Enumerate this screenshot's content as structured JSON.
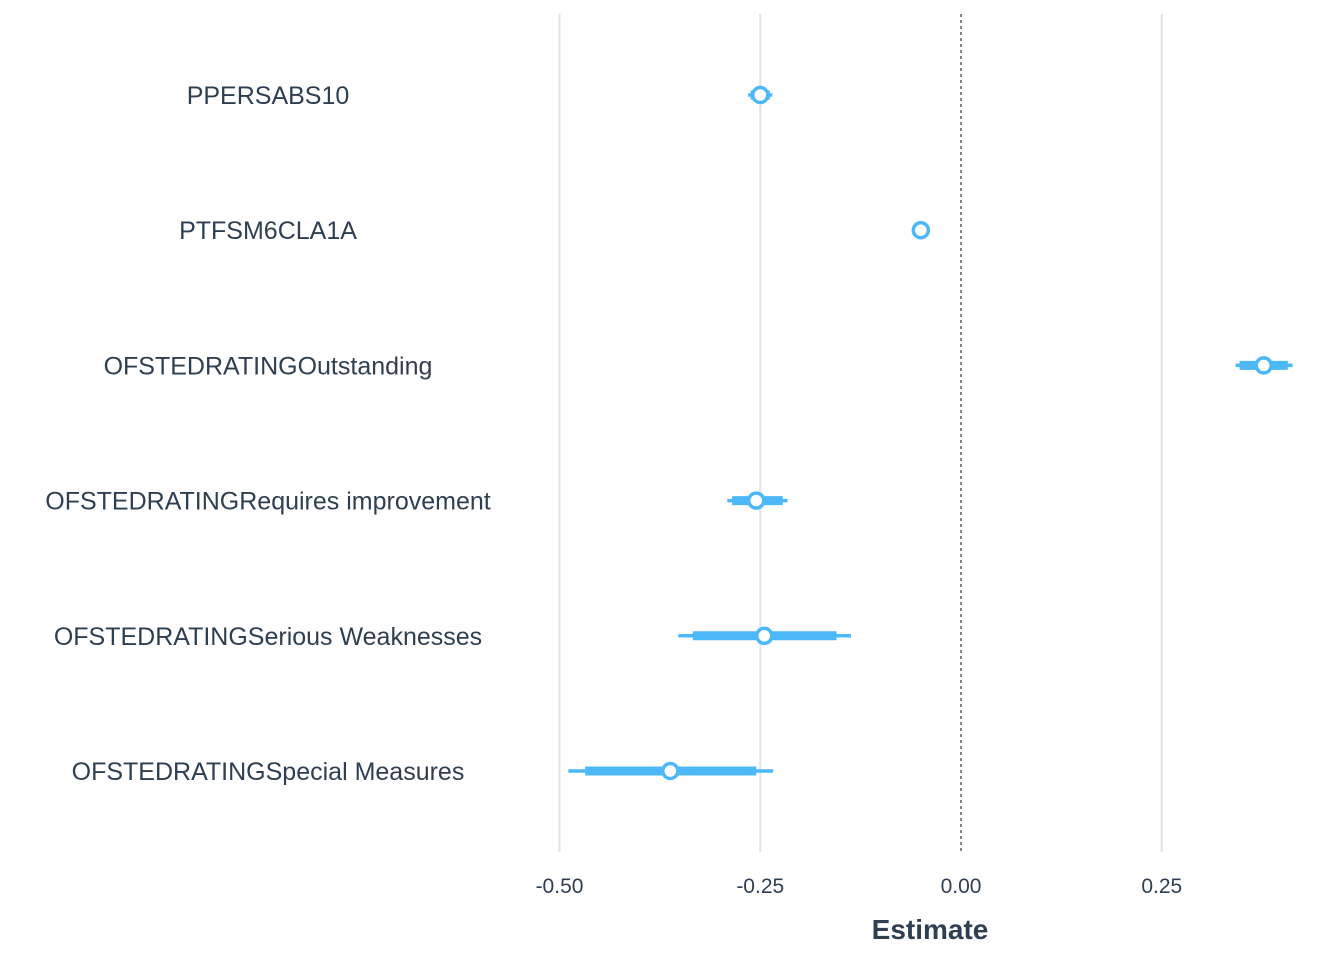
{
  "chart_data": {
    "type": "scatter",
    "subtype": "coefficient-interval-plot",
    "title": "",
    "xlabel": "Estimate",
    "ylabel": "",
    "xlim": [
      -0.505,
      0.415
    ],
    "xticks": [
      -0.5,
      -0.25,
      0.0,
      0.25
    ],
    "xtick_labels": [
      "-0.50",
      "-0.25",
      "0.00",
      "0.25"
    ],
    "reference_line": 0.0,
    "vertical_grid": true,
    "color": "#4db8f8",
    "terms": [
      {
        "label": "PPERSABS10",
        "estimate": -0.25,
        "inner": [
          -0.262,
          -0.238
        ],
        "outer": [
          -0.265,
          -0.235
        ]
      },
      {
        "label": "PTFSM6CLA1A",
        "estimate": -0.05,
        "inner": [
          -0.055,
          -0.045
        ],
        "outer": [
          -0.057,
          -0.043
        ]
      },
      {
        "label": "OFSTEDRATINGOutstanding",
        "estimate": 0.377,
        "inner": [
          0.347,
          0.407
        ],
        "outer": [
          0.342,
          0.413
        ]
      },
      {
        "label": "OFSTEDRATINGRequires improvement",
        "estimate": -0.255,
        "inner": [
          -0.285,
          -0.222
        ],
        "outer": [
          -0.291,
          -0.216
        ]
      },
      {
        "label": "OFSTEDRATINGSerious Weaknesses",
        "estimate": -0.245,
        "inner": [
          -0.334,
          -0.155
        ],
        "outer": [
          -0.352,
          -0.137
        ]
      },
      {
        "label": "OFSTEDRATINGSpecial Measures",
        "estimate": -0.362,
        "inner": [
          -0.468,
          -0.255
        ],
        "outer": [
          -0.489,
          -0.234
        ]
      }
    ]
  }
}
